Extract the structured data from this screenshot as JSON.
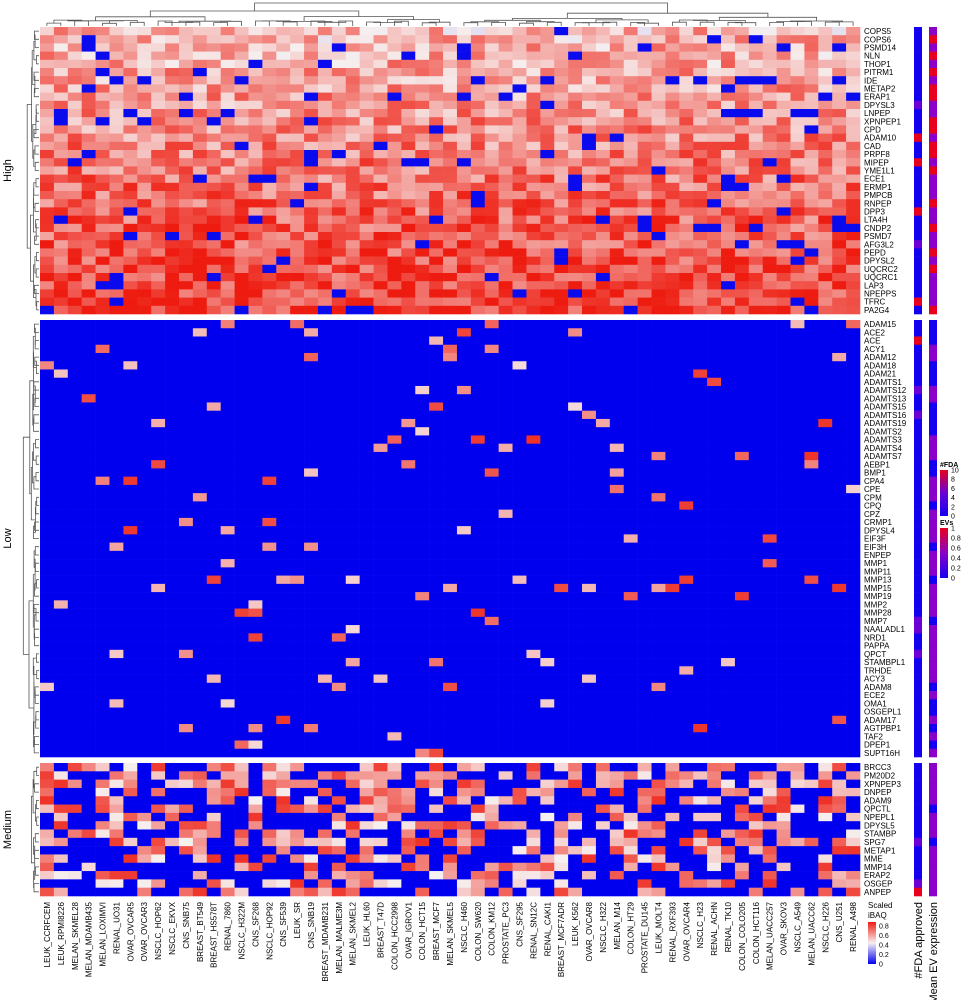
{
  "chart_data": {
    "type": "heatmap",
    "title": "",
    "xlabel": "",
    "ylabel": "",
    "columns": [
      "LEUK_CCRFCEM",
      "LEUK_RPMI8226",
      "MELAN_SKMEL28",
      "MELAN_MDAMB435",
      "MELAN_LOXIMVI",
      "RENAL_UO31",
      "OVAR_OVCAR5",
      "OVAR_OVCAR3",
      "NSCLC_HOP62",
      "NSCLC_EKVX",
      "CNS_SNB75",
      "BREAST_BT549",
      "BREAST_HS578T",
      "RENAL_7860",
      "NSCLC_H322M",
      "CNS_SF268",
      "NSCLC_HOP92",
      "CNS_SF539",
      "LEUK_SR",
      "CNS_SNB19",
      "BREAST_MDAMB231",
      "MELAN_MALME3M",
      "MELAN_SKMEL2",
      "LEUK_HL60",
      "BREAST_T47D",
      "COLON_HCC2998",
      "OVAR_IGROV1",
      "COLON_HCT15",
      "BREAST_MCF7",
      "MELAN_SKMEL5",
      "NSCLC_H460",
      "COLON_SW620",
      "COLON_KM12",
      "PROSTATE_PC3",
      "CNS_SF295",
      "RENAL_SN12C",
      "RENAL_CAKI1",
      "BREAST_MCF7ADR",
      "LEUK_K562",
      "OVAR_OVCAR8",
      "NSCLC_H322",
      "MELAN_M14",
      "COLON_HT29",
      "PROSTATE_DU145",
      "LEUK_MOLT4",
      "RENAL_RXF393",
      "OVAR_OVCAR4",
      "NSCLC_H23",
      "RENAL_ACHN",
      "RENAL_TK10",
      "COLON_COLO205",
      "COLON_HCT116",
      "MELAN_UACC257",
      "OVAR_SKOV3",
      "NSCLC_A549",
      "MELAN_UACC62",
      "NSCLC_H226",
      "CNS_U251",
      "RENAL_A498"
    ],
    "groups": [
      {
        "name": "High",
        "rows": [
          "COPS5",
          "COPS6",
          "PSMD14",
          "NLN",
          "THOP1",
          "PITRM1",
          "IDE",
          "METAP2",
          "ERAP1",
          "DPYSL3",
          "LNPEP",
          "XPNPEP1",
          "CPD",
          "ADAM10",
          "CAD",
          "PRPF8",
          "MIPEP",
          "YME1L1",
          "ECE1",
          "ERMP1",
          "PMPCB",
          "RNPEP",
          "DPP3",
          "LTA4H",
          "CNDP2",
          "PSMD7",
          "AFG3L2",
          "PEPD",
          "DPYSL2",
          "UQCRC2",
          "UQCRC1",
          "LAP3",
          "NPEPPS",
          "TFRC",
          "PA2G4"
        ]
      },
      {
        "name": "Low",
        "rows": [
          "ADAM15",
          "ACE2",
          "ACE",
          "ACY1",
          "ADAM12",
          "ADAM18",
          "ADAM21",
          "ADAMTS1",
          "ADAMTS12",
          "ADAMTS13",
          "ADAMTS15",
          "ADAMTS16",
          "ADAMTS19",
          "ADAMTS2",
          "ADAMTS3",
          "ADAMTS4",
          "ADAMTS7",
          "AEBP1",
          "BMP1",
          "CPA4",
          "CPE",
          "CPM",
          "CPQ",
          "CPZ",
          "CRMP1",
          "DPYSL4",
          "EIF3F",
          "EIF3H",
          "ENPEP",
          "MMP1",
          "MMP11",
          "MMP13",
          "MMP15",
          "MMP19",
          "MMP2",
          "MMP28",
          "MMP7",
          "NAALADL1",
          "NRD1",
          "PAPPA",
          "QPCT",
          "STAMBPL1",
          "TRHDE",
          "ACY3",
          "ADAM8",
          "ECE2",
          "OMA1",
          "OSGEPL1",
          "ADAM17",
          "AGTPBP1",
          "TAF2",
          "DPEP1",
          "SUPT16H"
        ]
      },
      {
        "name": "Medium",
        "rows": [
          "BRCC3",
          "PM20D2",
          "XPNPEP3",
          "DNPEP",
          "ADAM9",
          "QPCTL",
          "NPEPL1",
          "DPYSL5",
          "STAMBP",
          "SPG7",
          "METAP1",
          "MME",
          "MMP14",
          "ERAP2",
          "OSGEP",
          "ANPEP"
        ]
      }
    ],
    "value_scale": {
      "label_line1": "Scaled",
      "label_line2": "iBAQ",
      "ticks": [
        "0.8",
        "0.6",
        "0.4",
        "0.2",
        "0"
      ],
      "low_color": "#0000ee",
      "mid_color": "#f6f0f0",
      "high_color": "#ee1c10"
    },
    "annotation_columns": [
      "#FDA approved",
      "Mean EV expression"
    ],
    "fda_legend": {
      "title": "#FDA",
      "ticks": [
        "10",
        "8",
        "6",
        "4",
        "2",
        "0"
      ],
      "colors": [
        "#e8001c",
        "#6a00d6",
        "#1400f0"
      ]
    },
    "ev_legend": {
      "title": "EVs",
      "ticks": [
        "1",
        "0.8",
        "0.6",
        "0.4",
        "0.2",
        "0"
      ],
      "colors": [
        "#e8001c",
        "#8a00c8",
        "#1400f0"
      ]
    },
    "fda_highlight_rows": [
      "ACE",
      "ADAM10",
      "MIPEP",
      "TFRC",
      "ANPEP",
      "DPP3"
    ]
  }
}
